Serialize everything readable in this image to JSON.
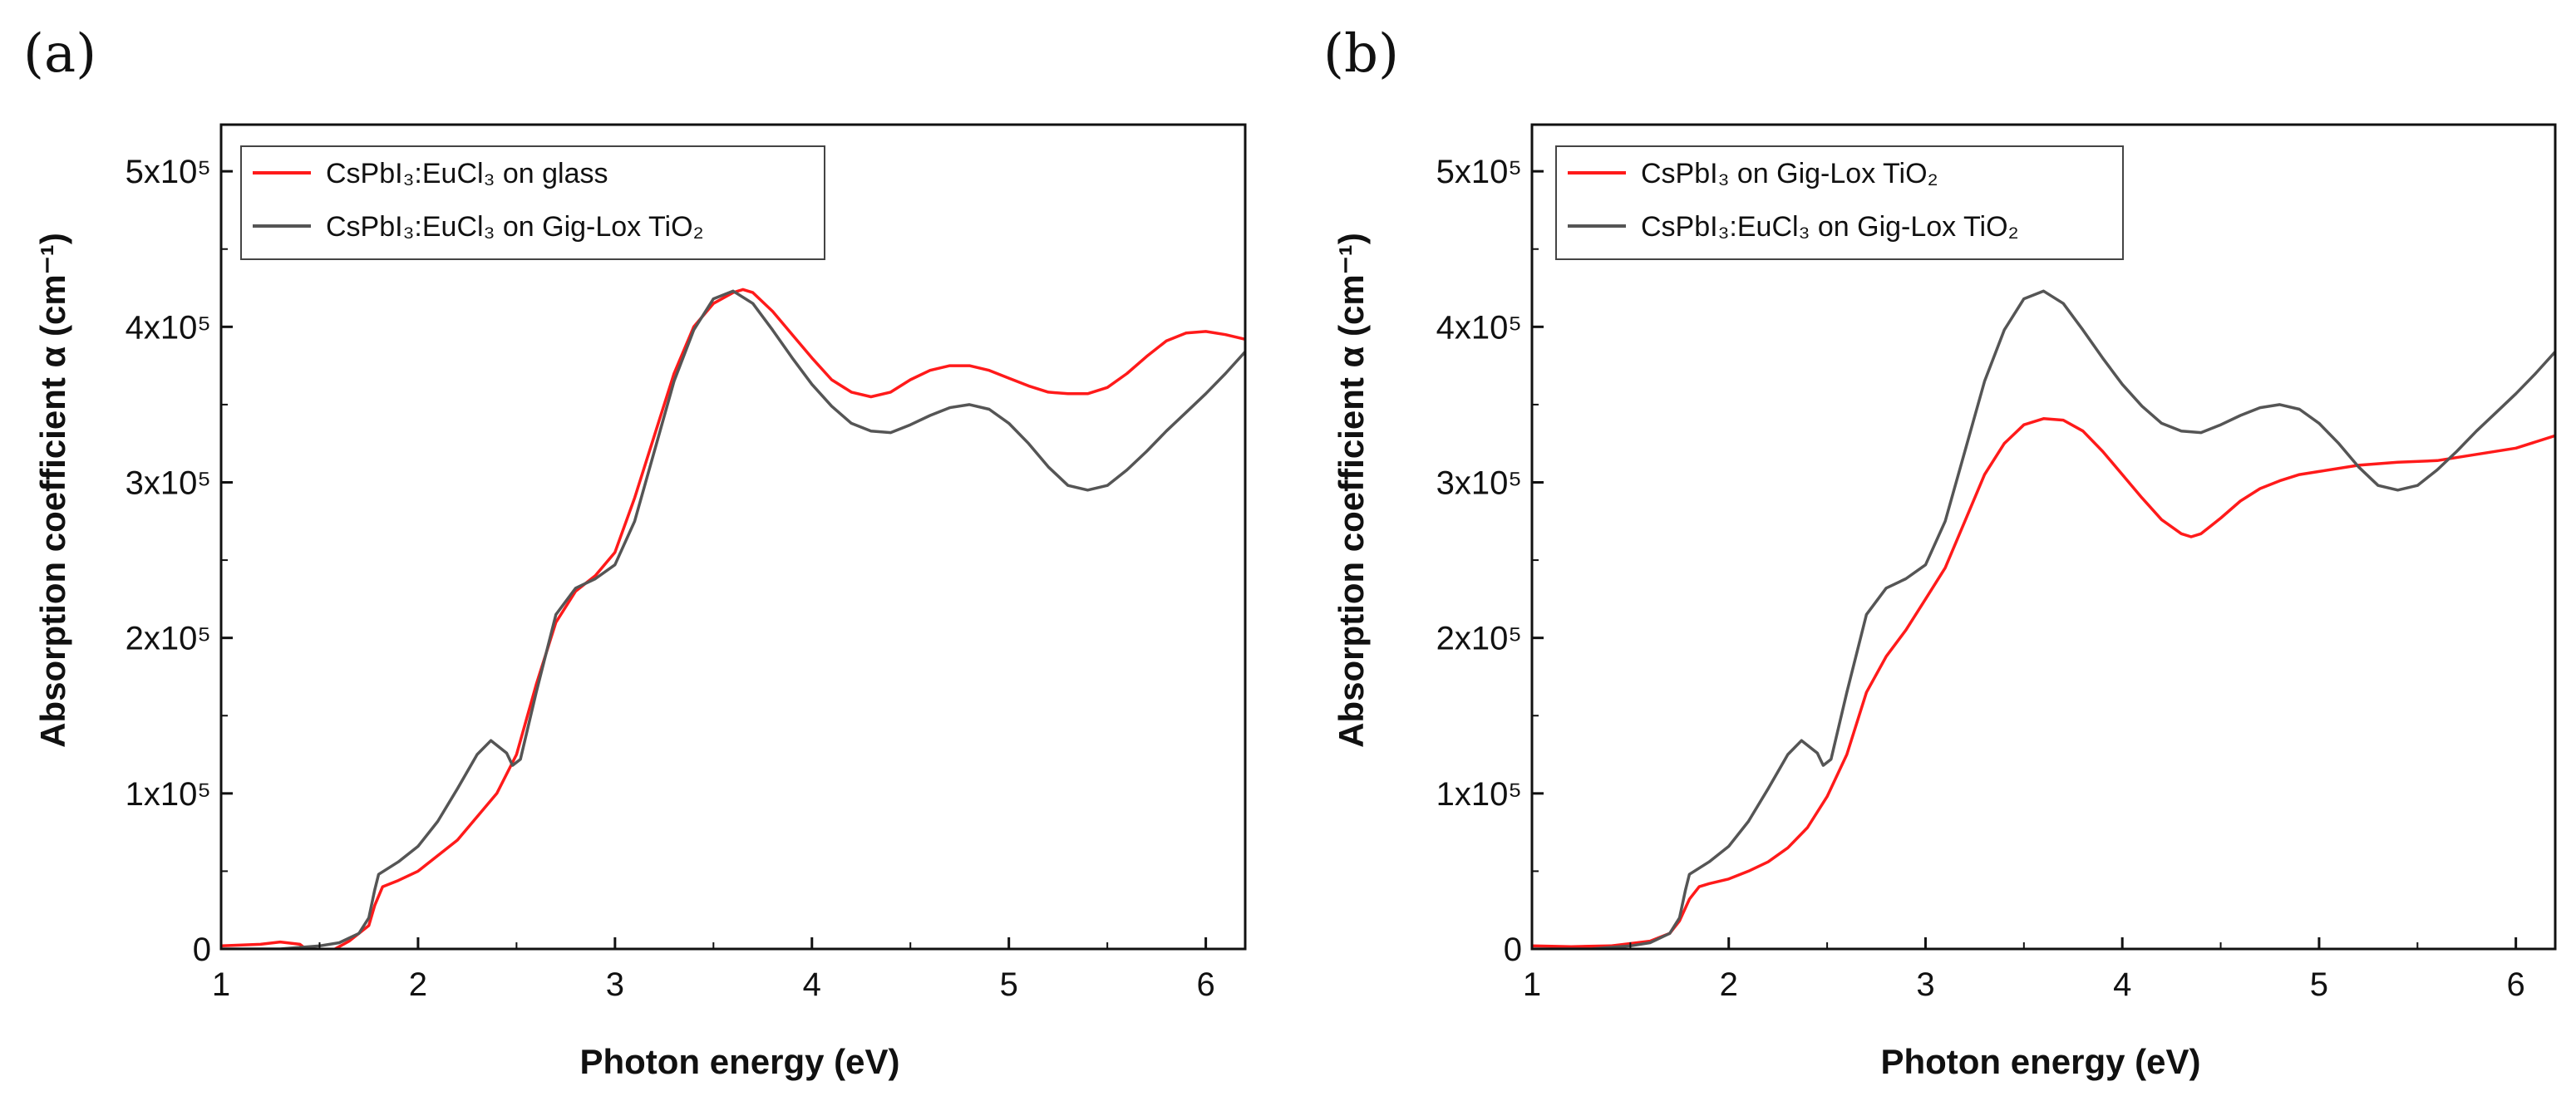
{
  "chart_data": [
    {
      "panel_label": "(a)",
      "type": "line",
      "xlabel": "Photon energy (eV)",
      "ylabel": "Absorption coefficient α (cm⁻¹)",
      "xlim": [
        1,
        6.2
      ],
      "ylim": [
        0,
        530000
      ],
      "xticks": [
        1,
        2,
        3,
        4,
        5,
        6
      ],
      "yticks": [
        0,
        100000,
        200000,
        300000,
        400000,
        500000
      ],
      "ytick_labels": [
        "0",
        "1x10⁵",
        "2x10⁵",
        "3x10⁵",
        "4x10⁵",
        "5x10⁵"
      ],
      "legend_location": "top-left",
      "series": [
        {
          "name": "CsPbI₃:EuCl₃ on glass",
          "color": "#ff1a1a",
          "points": [
            [
              1.0,
              2000
            ],
            [
              1.2,
              3000
            ],
            [
              1.3,
              4500
            ],
            [
              1.4,
              3000
            ],
            [
              1.45,
              -2000
            ],
            [
              1.55,
              -2000
            ],
            [
              1.65,
              5000
            ],
            [
              1.75,
              15000
            ],
            [
              1.78,
              28000
            ],
            [
              1.82,
              40000
            ],
            [
              1.9,
              44000
            ],
            [
              2.0,
              50000
            ],
            [
              2.2,
              70000
            ],
            [
              2.4,
              100000
            ],
            [
              2.5,
              125000
            ],
            [
              2.6,
              170000
            ],
            [
              2.7,
              210000
            ],
            [
              2.8,
              230000
            ],
            [
              2.9,
              240000
            ],
            [
              3.0,
              255000
            ],
            [
              3.1,
              290000
            ],
            [
              3.2,
              330000
            ],
            [
              3.3,
              370000
            ],
            [
              3.4,
              400000
            ],
            [
              3.5,
              415000
            ],
            [
              3.6,
              422000
            ],
            [
              3.65,
              424000
            ],
            [
              3.7,
              422000
            ],
            [
              3.8,
              410000
            ],
            [
              3.9,
              395000
            ],
            [
              4.0,
              380000
            ],
            [
              4.1,
              366000
            ],
            [
              4.2,
              358000
            ],
            [
              4.3,
              355000
            ],
            [
              4.4,
              358000
            ],
            [
              4.5,
              366000
            ],
            [
              4.6,
              372000
            ],
            [
              4.7,
              375000
            ],
            [
              4.8,
              375000
            ],
            [
              4.9,
              372000
            ],
            [
              5.0,
              367000
            ],
            [
              5.1,
              362000
            ],
            [
              5.2,
              358000
            ],
            [
              5.3,
              357000
            ],
            [
              5.4,
              357000
            ],
            [
              5.5,
              361000
            ],
            [
              5.6,
              370000
            ],
            [
              5.7,
              381000
            ],
            [
              5.8,
              391000
            ],
            [
              5.9,
              396000
            ],
            [
              6.0,
              397000
            ],
            [
              6.1,
              395000
            ],
            [
              6.2,
              392000
            ]
          ]
        },
        {
          "name": "CsPbI₃:EuCl₃ on Gig-Lox TiO₂",
          "color": "#555555",
          "points": [
            [
              1.0,
              0
            ],
            [
              1.3,
              0
            ],
            [
              1.5,
              2000
            ],
            [
              1.6,
              4000
            ],
            [
              1.7,
              10000
            ],
            [
              1.75,
              20000
            ],
            [
              1.78,
              38000
            ],
            [
              1.8,
              48000
            ],
            [
              1.9,
              56000
            ],
            [
              2.0,
              66000
            ],
            [
              2.1,
              82000
            ],
            [
              2.2,
              103000
            ],
            [
              2.3,
              125000
            ],
            [
              2.37,
              134000
            ],
            [
              2.45,
              126000
            ],
            [
              2.48,
              118000
            ],
            [
              2.52,
              122000
            ],
            [
              2.6,
              165000
            ],
            [
              2.7,
              215000
            ],
            [
              2.8,
              232000
            ],
            [
              2.9,
              238000
            ],
            [
              3.0,
              247000
            ],
            [
              3.1,
              275000
            ],
            [
              3.2,
              320000
            ],
            [
              3.3,
              365000
            ],
            [
              3.4,
              398000
            ],
            [
              3.5,
              418000
            ],
            [
              3.6,
              423000
            ],
            [
              3.7,
              415000
            ],
            [
              3.8,
              398000
            ],
            [
              3.9,
              380000
            ],
            [
              4.0,
              363000
            ],
            [
              4.1,
              349000
            ],
            [
              4.2,
              338000
            ],
            [
              4.3,
              333000
            ],
            [
              4.4,
              332000
            ],
            [
              4.5,
              337000
            ],
            [
              4.6,
              343000
            ],
            [
              4.7,
              348000
            ],
            [
              4.8,
              350000
            ],
            [
              4.9,
              347000
            ],
            [
              5.0,
              338000
            ],
            [
              5.1,
              325000
            ],
            [
              5.2,
              310000
            ],
            [
              5.3,
              298000
            ],
            [
              5.4,
              295000
            ],
            [
              5.5,
              298000
            ],
            [
              5.6,
              308000
            ],
            [
              5.7,
              320000
            ],
            [
              5.8,
              333000
            ],
            [
              5.9,
              345000
            ],
            [
              6.0,
              357000
            ],
            [
              6.1,
              370000
            ],
            [
              6.2,
              384000
            ]
          ]
        }
      ]
    },
    {
      "panel_label": "(b)",
      "type": "line",
      "xlabel": "Photon energy (eV)",
      "ylabel": "Absorption coefficient α (cm⁻¹)",
      "xlim": [
        1,
        6.2
      ],
      "ylim": [
        0,
        530000
      ],
      "xticks": [
        1,
        2,
        3,
        4,
        5,
        6
      ],
      "yticks": [
        0,
        100000,
        200000,
        300000,
        400000,
        500000
      ],
      "ytick_labels": [
        "0",
        "1x10⁵",
        "2x10⁵",
        "3x10⁵",
        "4x10⁵",
        "5x10⁵"
      ],
      "legend_location": "top-left",
      "series": [
        {
          "name": "CsPbI₃ on Gig-Lox TiO₂",
          "color": "#ff1a1a",
          "points": [
            [
              1.0,
              2000
            ],
            [
              1.2,
              1500
            ],
            [
              1.4,
              2000
            ],
            [
              1.6,
              5000
            ],
            [
              1.7,
              10000
            ],
            [
              1.75,
              18000
            ],
            [
              1.8,
              32000
            ],
            [
              1.85,
              40000
            ],
            [
              1.9,
              42000
            ],
            [
              2.0,
              45000
            ],
            [
              2.1,
              50000
            ],
            [
              2.2,
              56000
            ],
            [
              2.3,
              65000
            ],
            [
              2.4,
              78000
            ],
            [
              2.5,
              98000
            ],
            [
              2.6,
              125000
            ],
            [
              2.7,
              165000
            ],
            [
              2.8,
              188000
            ],
            [
              2.9,
              205000
            ],
            [
              3.0,
              225000
            ],
            [
              3.1,
              245000
            ],
            [
              3.2,
              275000
            ],
            [
              3.3,
              305000
            ],
            [
              3.4,
              325000
            ],
            [
              3.5,
              337000
            ],
            [
              3.6,
              341000
            ],
            [
              3.7,
              340000
            ],
            [
              3.8,
              333000
            ],
            [
              3.9,
              320000
            ],
            [
              4.0,
              305000
            ],
            [
              4.1,
              290000
            ],
            [
              4.2,
              276000
            ],
            [
              4.3,
              267000
            ],
            [
              4.35,
              265000
            ],
            [
              4.4,
              267000
            ],
            [
              4.5,
              277000
            ],
            [
              4.6,
              288000
            ],
            [
              4.7,
              296000
            ],
            [
              4.8,
              301000
            ],
            [
              4.9,
              305000
            ],
            [
              5.0,
              307000
            ],
            [
              5.2,
              311000
            ],
            [
              5.4,
              313000
            ],
            [
              5.6,
              314000
            ],
            [
              5.8,
              318000
            ],
            [
              6.0,
              322000
            ],
            [
              6.2,
              330000
            ]
          ]
        },
        {
          "name": "CsPbI₃:EuCl₃ on Gig-Lox TiO₂",
          "color": "#555555",
          "points": [
            [
              1.0,
              0
            ],
            [
              1.3,
              0
            ],
            [
              1.5,
              2000
            ],
            [
              1.6,
              4000
            ],
            [
              1.7,
              10000
            ],
            [
              1.75,
              20000
            ],
            [
              1.78,
              38000
            ],
            [
              1.8,
              48000
            ],
            [
              1.9,
              56000
            ],
            [
              2.0,
              66000
            ],
            [
              2.1,
              82000
            ],
            [
              2.2,
              103000
            ],
            [
              2.3,
              125000
            ],
            [
              2.37,
              134000
            ],
            [
              2.45,
              126000
            ],
            [
              2.48,
              118000
            ],
            [
              2.52,
              122000
            ],
            [
              2.6,
              165000
            ],
            [
              2.7,
              215000
            ],
            [
              2.8,
              232000
            ],
            [
              2.9,
              238000
            ],
            [
              3.0,
              247000
            ],
            [
              3.1,
              275000
            ],
            [
              3.2,
              320000
            ],
            [
              3.3,
              365000
            ],
            [
              3.4,
              398000
            ],
            [
              3.5,
              418000
            ],
            [
              3.6,
              423000
            ],
            [
              3.7,
              415000
            ],
            [
              3.8,
              398000
            ],
            [
              3.9,
              380000
            ],
            [
              4.0,
              363000
            ],
            [
              4.1,
              349000
            ],
            [
              4.2,
              338000
            ],
            [
              4.3,
              333000
            ],
            [
              4.4,
              332000
            ],
            [
              4.5,
              337000
            ],
            [
              4.6,
              343000
            ],
            [
              4.7,
              348000
            ],
            [
              4.8,
              350000
            ],
            [
              4.9,
              347000
            ],
            [
              5.0,
              338000
            ],
            [
              5.1,
              325000
            ],
            [
              5.2,
              310000
            ],
            [
              5.3,
              298000
            ],
            [
              5.4,
              295000
            ],
            [
              5.5,
              298000
            ],
            [
              5.6,
              308000
            ],
            [
              5.7,
              320000
            ],
            [
              5.8,
              333000
            ],
            [
              5.9,
              345000
            ],
            [
              6.0,
              357000
            ],
            [
              6.1,
              370000
            ],
            [
              6.2,
              384000
            ]
          ]
        }
      ]
    }
  ]
}
